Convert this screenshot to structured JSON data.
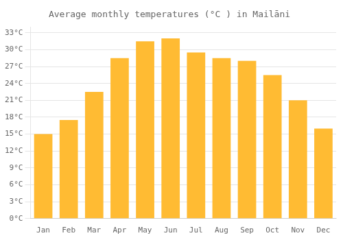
{
  "chart_data": {
    "type": "bar",
    "title": "Average monthly temperatures (°C ) in Mailāni",
    "categories": [
      "Jan",
      "Feb",
      "Mar",
      "Apr",
      "May",
      "Jun",
      "Jul",
      "Aug",
      "Sep",
      "Oct",
      "Nov",
      "Dec"
    ],
    "values": [
      15.0,
      17.5,
      22.5,
      28.5,
      31.5,
      32.0,
      29.5,
      28.5,
      28.0,
      25.5,
      21.0,
      16.0
    ],
    "color": "#FFBB33",
    "ylim": [
      0,
      34
    ],
    "yticks": [
      {
        "value": 0,
        "label": "0°C"
      },
      {
        "value": 3,
        "label": "3°C"
      },
      {
        "value": 6,
        "label": "6°C"
      },
      {
        "value": 9,
        "label": "9°C"
      },
      {
        "value": 12,
        "label": "12°C"
      },
      {
        "value": 15,
        "label": "15°C"
      },
      {
        "value": 18,
        "label": "18°C"
      },
      {
        "value": 21,
        "label": "21°C"
      },
      {
        "value": 24,
        "label": "24°C"
      },
      {
        "value": 27,
        "label": "27°C"
      },
      {
        "value": 30,
        "label": "30°C"
      },
      {
        "value": 33,
        "label": "33°C"
      }
    ],
    "grid": true
  }
}
